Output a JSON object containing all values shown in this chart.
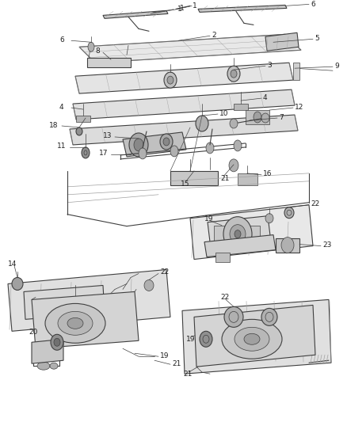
{
  "bg_color": "#f0f0f0",
  "line_color": "#404040",
  "label_color": "#202020",
  "label_fontsize": 6.5,
  "fig_width": 4.38,
  "fig_height": 5.33,
  "dpi": 100,
  "gray_light": "#c8c8c8",
  "gray_mid": "#a0a0a0",
  "gray_dark": "#606060",
  "white": "#ffffff"
}
